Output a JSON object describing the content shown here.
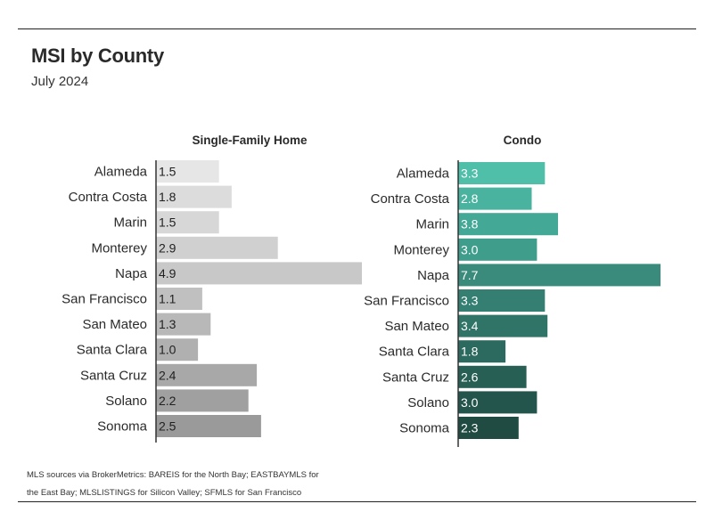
{
  "title": "MSI by County",
  "subtitle": "July 2024",
  "source_note": "MLS sources via BrokerMetrics: BAREIS for the North Bay; EASTBAYMLS for the East Bay; MLSLISTINGS for Silicon Valley; SFMLS for San Francisco",
  "chart_data": [
    {
      "type": "bar",
      "orientation": "horizontal",
      "title": "Single-Family Home",
      "categories": [
        "Alameda",
        "Contra Costa",
        "Marin",
        "Monterey",
        "Napa",
        "San Francisco",
        "San Mateo",
        "Santa Clara",
        "Santa Cruz",
        "Solano",
        "Sonoma"
      ],
      "values": [
        1.5,
        1.8,
        1.5,
        2.9,
        4.9,
        1.1,
        1.3,
        1.0,
        2.4,
        2.2,
        2.5
      ],
      "value_labels": [
        "1.5",
        "1.8",
        "1.5",
        "2.9",
        "4.9",
        "1.1",
        "1.3",
        "1.0",
        "2.4",
        "2.2",
        "2.5"
      ],
      "xlim": [
        0,
        4.9
      ],
      "bar_colors": [
        "#e6e6e6",
        "#dcdcdc",
        "#d7d7d7",
        "#d0d0d0",
        "#c8c8c8",
        "#c0c0c0",
        "#b8b8b8",
        "#b0b0b0",
        "#a8a8a8",
        "#a0a0a0",
        "#9a9a9a"
      ],
      "axis_labels_shown": false,
      "grid": false,
      "legend": "none"
    },
    {
      "type": "bar",
      "orientation": "horizontal",
      "title": "Condo",
      "categories": [
        "Alameda",
        "Contra Costa",
        "Marin",
        "Monterey",
        "Napa",
        "San Francisco",
        "San Mateo",
        "Santa Clara",
        "Santa Cruz",
        "Solano",
        "Sonoma"
      ],
      "values": [
        3.3,
        2.8,
        3.8,
        3.0,
        7.7,
        3.3,
        3.4,
        1.8,
        2.6,
        3.0,
        2.3
      ],
      "value_labels": [
        "3.3",
        "2.8",
        "3.8",
        "3.0",
        "7.7",
        "3.3",
        "3.4",
        "1.8",
        "2.6",
        "3.0",
        "2.3"
      ],
      "xlim": [
        0,
        7.7
      ],
      "bar_colors": [
        "#4fbfa9",
        "#4ab3a0",
        "#44a896",
        "#3f9d8c",
        "#3a8b7c",
        "#357f72",
        "#307468",
        "#2c695e",
        "#285f55",
        "#24554c",
        "#204b43"
      ],
      "axis_labels_shown": false,
      "grid": false,
      "legend": "none"
    }
  ]
}
